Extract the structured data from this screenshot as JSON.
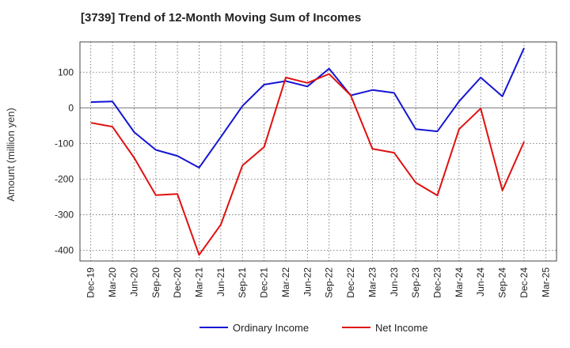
{
  "chart_data": {
    "type": "line",
    "title": "[3739]  Trend of 12-Month Moving Sum of Incomes",
    "xlabel": "",
    "ylabel": "Amount (million yen)",
    "ylim": [
      -430,
      185
    ],
    "yticks": [
      100,
      0,
      -100,
      -200,
      -300,
      -400
    ],
    "grid": true,
    "legend_position": "bottom",
    "categories": [
      "Dec-19",
      "Mar-20",
      "Jun-20",
      "Sep-20",
      "Dec-20",
      "Mar-21",
      "Jun-21",
      "Sep-21",
      "Dec-21",
      "Mar-22",
      "Jun-22",
      "Sep-22",
      "Dec-22",
      "Mar-23",
      "Jun-23",
      "Sep-23",
      "Dec-23",
      "Mar-24",
      "Jun-24",
      "Sep-24",
      "Dec-24",
      "Mar-25"
    ],
    "series": [
      {
        "name": "Ordinary Income",
        "color": "#1515d4",
        "values": [
          16,
          18,
          -68,
          -118,
          -135,
          -168,
          -82,
          5,
          65,
          75,
          60,
          110,
          35,
          50,
          42,
          -60,
          -66,
          18,
          85,
          32,
          168,
          null
        ]
      },
      {
        "name": "Net Income",
        "color": "#e01010",
        "values": [
          -42,
          -53,
          -140,
          -245,
          -242,
          -413,
          -328,
          -162,
          -110,
          85,
          70,
          95,
          35,
          -115,
          -126,
          -210,
          -246,
          -60,
          -2,
          -232,
          -95,
          null
        ]
      }
    ]
  }
}
